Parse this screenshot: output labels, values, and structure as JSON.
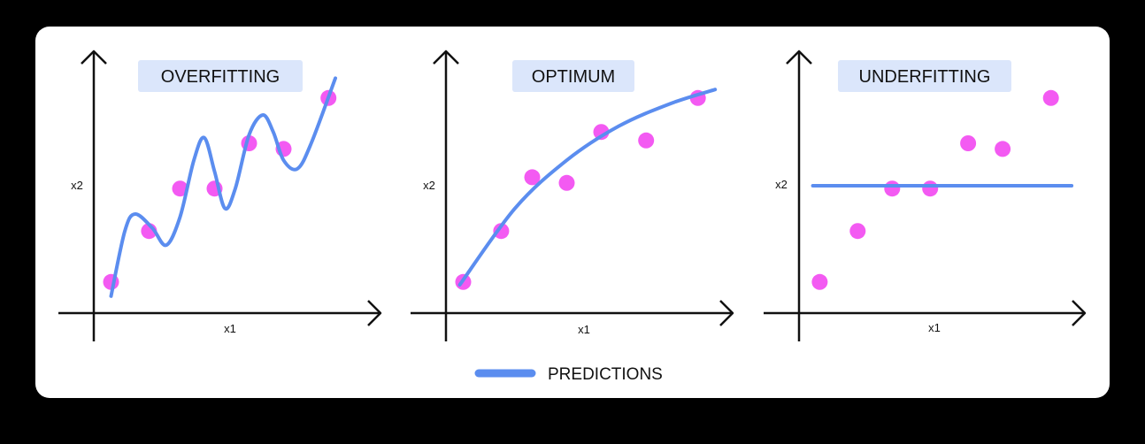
{
  "colors": {
    "background": "#000000",
    "card": "#ffffff",
    "axis": "#111111",
    "prediction": "#5b8def",
    "point": "#f35af2",
    "title_bg": "#dbe6fb",
    "title_text": "#111111"
  },
  "legend": {
    "label": "PREDICTIONS"
  },
  "chart_data": [
    {
      "type": "scatter",
      "title": "OVERFITTING",
      "xlabel": "x1",
      "ylabel": "x2",
      "points": [
        {
          "x": 0.5,
          "y": 1.1
        },
        {
          "x": 1.6,
          "y": 2.9
        },
        {
          "x": 2.5,
          "y": 4.4
        },
        {
          "x": 3.5,
          "y": 4.4
        },
        {
          "x": 4.5,
          "y": 6.0
        },
        {
          "x": 5.5,
          "y": 5.8
        },
        {
          "x": 6.8,
          "y": 7.6
        }
      ],
      "prediction_line": [
        {
          "x": 0.5,
          "y": 0.6
        },
        {
          "x": 0.9,
          "y": 2.9
        },
        {
          "x": 1.2,
          "y": 3.5
        },
        {
          "x": 1.7,
          "y": 3.0
        },
        {
          "x": 2.1,
          "y": 2.4
        },
        {
          "x": 2.5,
          "y": 3.4
        },
        {
          "x": 2.9,
          "y": 5.4
        },
        {
          "x": 3.2,
          "y": 6.2
        },
        {
          "x": 3.5,
          "y": 5.0
        },
        {
          "x": 3.8,
          "y": 3.7
        },
        {
          "x": 4.1,
          "y": 4.4
        },
        {
          "x": 4.5,
          "y": 6.3
        },
        {
          "x": 4.9,
          "y": 7.0
        },
        {
          "x": 5.2,
          "y": 6.4
        },
        {
          "x": 5.5,
          "y": 5.4
        },
        {
          "x": 5.9,
          "y": 5.1
        },
        {
          "x": 6.3,
          "y": 6.0
        },
        {
          "x": 7.0,
          "y": 8.3
        }
      ],
      "xlim": [
        0,
        8.5
      ],
      "ylim": [
        0,
        8.8
      ],
      "grid": false
    },
    {
      "type": "scatter",
      "title": "OPTIMUM",
      "xlabel": "x1",
      "ylabel": "x2",
      "points": [
        {
          "x": 0.5,
          "y": 1.1
        },
        {
          "x": 1.6,
          "y": 2.9
        },
        {
          "x": 2.5,
          "y": 4.8
        },
        {
          "x": 3.5,
          "y": 4.6
        },
        {
          "x": 4.5,
          "y": 6.4
        },
        {
          "x": 5.8,
          "y": 6.1
        },
        {
          "x": 7.3,
          "y": 7.6
        }
      ],
      "prediction_line": [
        {
          "x": 0.4,
          "y": 1.0
        },
        {
          "x": 2.0,
          "y": 3.7
        },
        {
          "x": 3.5,
          "y": 5.4
        },
        {
          "x": 5.0,
          "y": 6.6
        },
        {
          "x": 6.5,
          "y": 7.4
        },
        {
          "x": 7.8,
          "y": 7.9
        }
      ],
      "xlim": [
        0,
        8.5
      ],
      "ylim": [
        0,
        8.8
      ],
      "grid": false
    },
    {
      "type": "scatter",
      "title": "UNDERFITTING",
      "xlabel": "x1",
      "ylabel": "x2",
      "points": [
        {
          "x": 0.6,
          "y": 1.1
        },
        {
          "x": 1.7,
          "y": 2.9
        },
        {
          "x": 2.7,
          "y": 4.4
        },
        {
          "x": 3.8,
          "y": 4.4
        },
        {
          "x": 4.9,
          "y": 6.0
        },
        {
          "x": 5.9,
          "y": 5.8
        },
        {
          "x": 7.3,
          "y": 7.6
        }
      ],
      "prediction_line": [
        {
          "x": 0.4,
          "y": 4.5
        },
        {
          "x": 7.9,
          "y": 4.5
        }
      ],
      "xlim": [
        0,
        8.5
      ],
      "ylim": [
        0,
        8.8
      ],
      "grid": false
    }
  ]
}
